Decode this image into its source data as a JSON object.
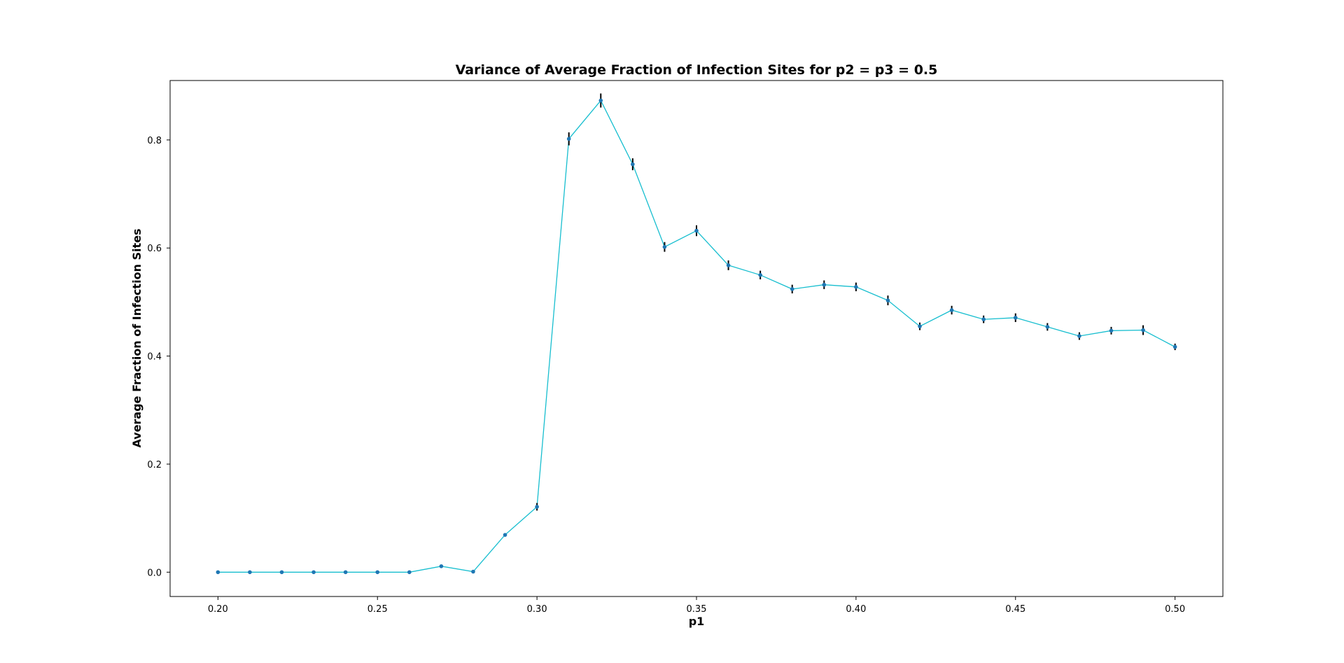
{
  "chart_data": {
    "type": "line",
    "title": "Variance of Average Fraction of Infection Sites for p2 = p3 = 0.5",
    "xlabel": "p1",
    "ylabel": "Average Fraction of Infection Sites",
    "xlim": [
      0.185,
      0.515
    ],
    "ylim": [
      -0.045,
      0.91
    ],
    "xticks": [
      0.2,
      0.25,
      0.3,
      0.35,
      0.4,
      0.45,
      0.5
    ],
    "xtick_labels": [
      "0.20",
      "0.25",
      "0.30",
      "0.35",
      "0.40",
      "0.45",
      "0.50"
    ],
    "yticks": [
      0.0,
      0.2,
      0.4,
      0.6,
      0.8
    ],
    "ytick_labels": [
      "0.0",
      "0.2",
      "0.4",
      "0.6",
      "0.8"
    ],
    "grid": false,
    "line_color": "#17becf",
    "marker_color": "#1f77b4",
    "errorbar_color": "#000000",
    "x": [
      0.2,
      0.21,
      0.22,
      0.23,
      0.24,
      0.25,
      0.26,
      0.27,
      0.28,
      0.29,
      0.3,
      0.31,
      0.32,
      0.33,
      0.34,
      0.35,
      0.36,
      0.37,
      0.38,
      0.39,
      0.4,
      0.41,
      0.42,
      0.43,
      0.44,
      0.45,
      0.46,
      0.47,
      0.48,
      0.49,
      0.5
    ],
    "y": [
      0.0,
      0.0,
      0.0,
      0.0,
      0.0,
      0.0,
      0.0,
      0.011,
      0.001,
      0.069,
      0.121,
      0.802,
      0.873,
      0.755,
      0.602,
      0.632,
      0.568,
      0.55,
      0.524,
      0.532,
      0.528,
      0.503,
      0.455,
      0.485,
      0.468,
      0.471,
      0.454,
      0.437,
      0.447,
      0.448,
      0.417
    ],
    "yerr": [
      0.0,
      0.0,
      0.0,
      0.0,
      0.0,
      0.0,
      0.0,
      0.002,
      0.001,
      0.003,
      0.007,
      0.012,
      0.013,
      0.011,
      0.009,
      0.01,
      0.009,
      0.008,
      0.008,
      0.008,
      0.008,
      0.009,
      0.007,
      0.008,
      0.007,
      0.008,
      0.007,
      0.007,
      0.007,
      0.009,
      0.006
    ]
  }
}
